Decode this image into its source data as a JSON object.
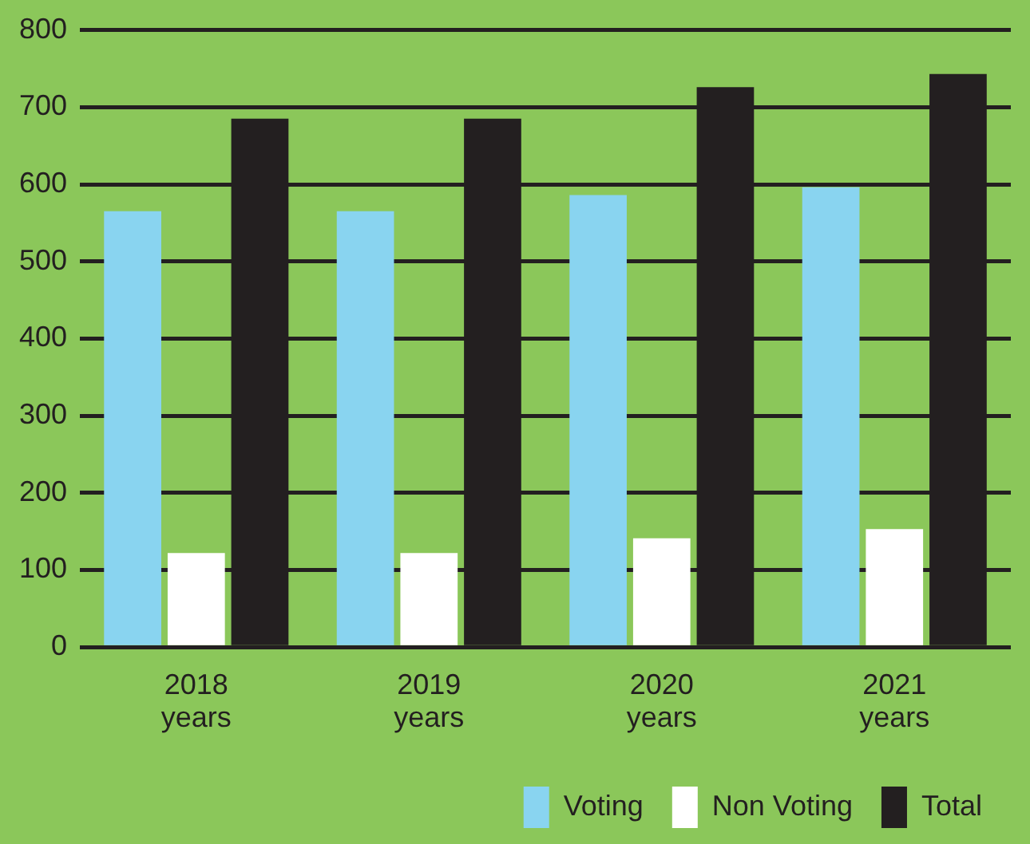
{
  "chart_data": {
    "type": "bar",
    "categories": [
      "2018\nyears",
      "2019\nyears",
      "2020\nyears",
      "2021\nyears"
    ],
    "series": [
      {
        "name": "Voting",
        "color": "#89d4f0",
        "values": [
          565,
          565,
          586,
          596
        ]
      },
      {
        "name": "Non Voting",
        "color": "#ffffff",
        "values": [
          122,
          122,
          141,
          153
        ]
      },
      {
        "name": "Total",
        "color": "#231f20",
        "values": [
          685,
          685,
          726,
          743
        ]
      }
    ],
    "ylim": [
      0,
      800
    ],
    "yticks": [
      0,
      100,
      200,
      300,
      400,
      500,
      600,
      700,
      800
    ],
    "grid": "y",
    "legend": "bottom right"
  }
}
